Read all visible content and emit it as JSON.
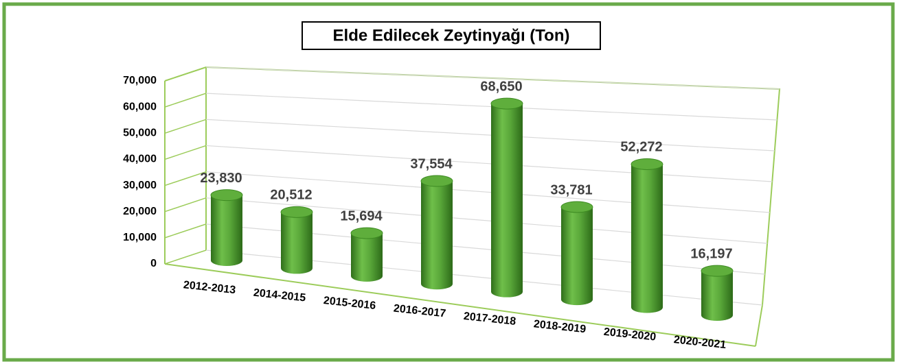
{
  "chart_data": {
    "type": "bar",
    "title": "Elde Edilecek Zeytinyağı (Ton)",
    "categories": [
      "2012-2013",
      "2014-2015",
      "2015-2016",
      "2016-2017",
      "2017-2018",
      "2018-2019",
      "2019-2020",
      "2020-2021"
    ],
    "values": [
      23830,
      20512,
      15694,
      37554,
      68650,
      33781,
      52272,
      16197
    ],
    "value_labels": [
      "23,830",
      "20,512",
      "15,694",
      "37,554",
      "68,650",
      "33,781",
      "52,272",
      "16,197"
    ],
    "color": "#4e9e2e",
    "ylim": [
      0,
      70000
    ],
    "yticks": [
      0,
      {
        "value": 10000,
        "label": "10,000"
      },
      {
        "value": 20000,
        "label": "20,000"
      },
      {
        "value": 30000,
        "label": "30,000"
      },
      {
        "value": 40000,
        "label": "40,000"
      },
      {
        "value": 50000,
        "label": "50,000"
      },
      {
        "value": 60000,
        "label": "60,000"
      },
      {
        "value": 70000,
        "label": "70,000"
      }
    ],
    "grid": true
  }
}
